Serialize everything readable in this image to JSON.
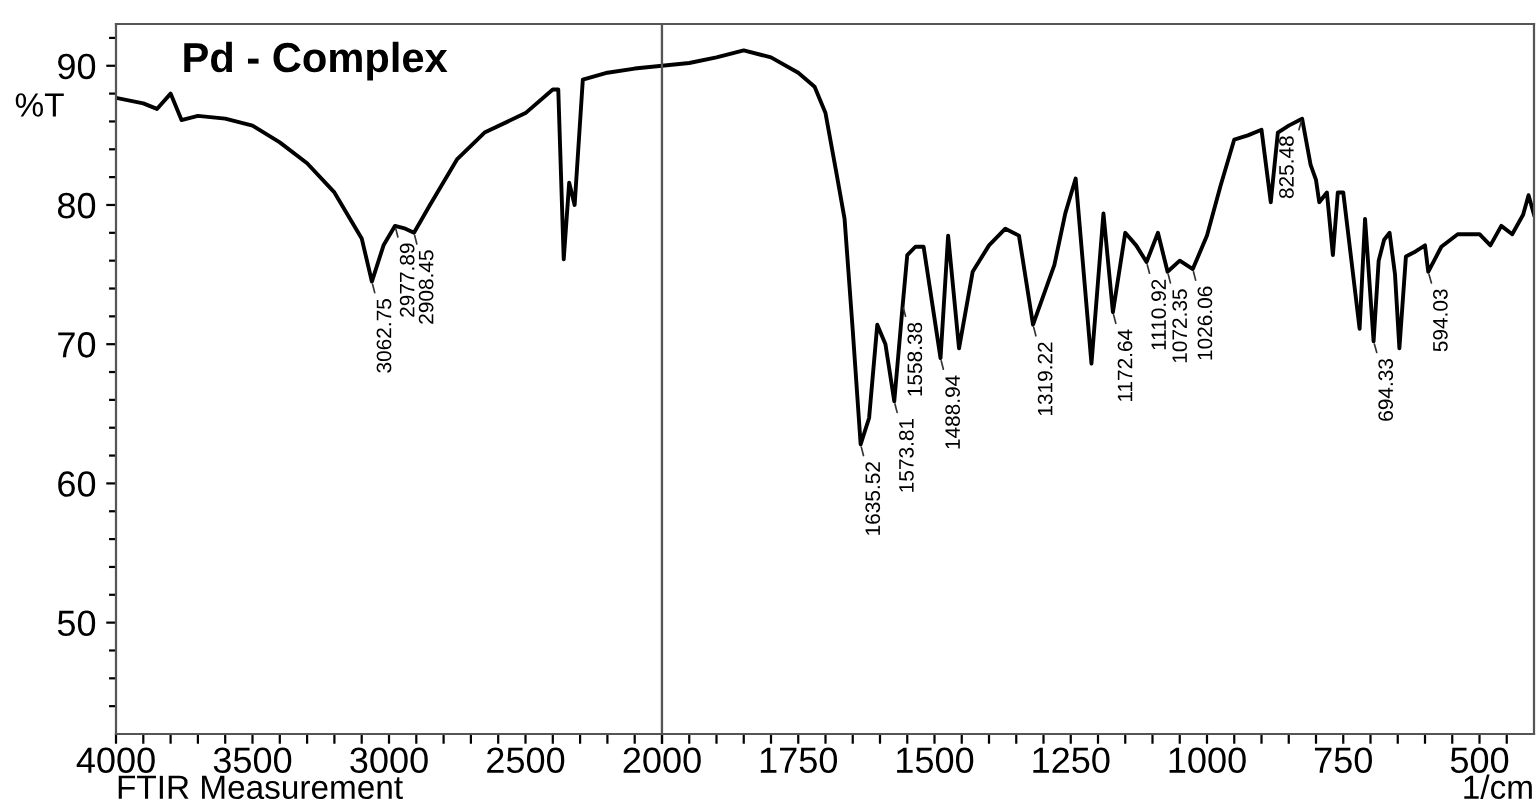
{
  "chart_data": [
    {
      "type": "line",
      "title": "Pd - Complex",
      "ylabel": "%T",
      "xlabel": "FTIR Measurement",
      "xlim": [
        4000,
        2000
      ],
      "ylim": [
        42,
        93
      ],
      "xticks": [
        4000,
        {
          "value": 3900,
          "label": null
        },
        {
          "value": 3800,
          "label": null
        },
        {
          "value": 3700,
          "label": null
        },
        {
          "value": 3600,
          "label": null
        },
        3500,
        {
          "value": 3400,
          "label": null
        },
        {
          "value": 3300,
          "label": null
        },
        {
          "value": 3200,
          "label": null
        },
        {
          "value": 3100,
          "label": null
        },
        3000,
        {
          "value": 2900,
          "label": null
        },
        {
          "value": 2800,
          "label": null
        },
        {
          "value": 2700,
          "label": null
        },
        {
          "value": 2600,
          "label": null
        },
        2500,
        {
          "value": 2400,
          "label": null
        },
        {
          "value": 2300,
          "label": null
        },
        {
          "value": 2200,
          "label": null
        },
        {
          "value": 2100,
          "label": null
        },
        2000
      ],
      "yticks": [
        {
          "value": 44,
          "label": null
        },
        {
          "value": 46,
          "label": null
        },
        {
          "value": 48,
          "label": null
        },
        50,
        {
          "value": 52,
          "label": null
        },
        {
          "value": 54,
          "label": null
        },
        {
          "value": 56,
          "label": null
        },
        {
          "value": 58,
          "label": null
        },
        60,
        {
          "value": 62,
          "label": null
        },
        {
          "value": 64,
          "label": null
        },
        {
          "value": 66,
          "label": null
        },
        {
          "value": 68,
          "label": null
        },
        70,
        {
          "value": 72,
          "label": null
        },
        {
          "value": 74,
          "label": null
        },
        {
          "value": 76,
          "label": null
        },
        {
          "value": 78,
          "label": null
        },
        80,
        {
          "value": 82,
          "label": null
        },
        {
          "value": 84,
          "label": null
        },
        {
          "value": 86,
          "label": null
        },
        {
          "value": 88,
          "label": null
        },
        90,
        {
          "value": 92,
          "label": null
        }
      ],
      "grid": false,
      "legend": false,
      "marker": "none",
      "line_style": "solid",
      "series": [
        {
          "color": "#000000",
          "x": [
            4000,
            3900,
            3850,
            3800,
            3760,
            3700,
            3600,
            3500,
            3400,
            3300,
            3200,
            3100,
            3062.75,
            3020,
            2977.89,
            2940,
            2908.45,
            2850,
            2750,
            2650,
            2500,
            2400,
            2380,
            2360,
            2340,
            2320,
            2290,
            2200,
            2100,
            2000
          ],
          "values": [
            87.7,
            87.3,
            86.9,
            88.0,
            86.1,
            86.4,
            86.2,
            85.7,
            84.5,
            83.0,
            80.9,
            77.6,
            74.5,
            77.1,
            78.5,
            78.3,
            78.0,
            80.0,
            83.3,
            85.2,
            86.6,
            88.3,
            88.3,
            76.1,
            81.6,
            80.0,
            89.0,
            89.5,
            89.8,
            90.0
          ]
        }
      ],
      "annotations": [
        {
          "text": "3062.75",
          "x": 3062.75,
          "y": 74.5
        },
        {
          "text": "2977.89",
          "x": 2977.89,
          "y": 78.5
        },
        {
          "text": "2908.45",
          "x": 2908.45,
          "y": 78.0
        }
      ]
    },
    {
      "type": "line",
      "xlabel": "1/cm",
      "xlim": [
        2000,
        400
      ],
      "ylim": [
        42,
        93
      ],
      "tick_labels": "x",
      "xticks": [
        {
          "value": 2000,
          "label": null
        },
        {
          "value": 1950,
          "label": null
        },
        {
          "value": 1900,
          "label": null
        },
        {
          "value": 1850,
          "label": null
        },
        {
          "value": 1800,
          "label": null
        },
        1750,
        {
          "value": 1700,
          "label": null
        },
        {
          "value": 1650,
          "label": null
        },
        {
          "value": 1600,
          "label": null
        },
        {
          "value": 1550,
          "label": null
        },
        1500,
        {
          "value": 1450,
          "label": null
        },
        {
          "value": 1400,
          "label": null
        },
        {
          "value": 1350,
          "label": null
        },
        {
          "value": 1300,
          "label": null
        },
        1250,
        {
          "value": 1200,
          "label": null
        },
        {
          "value": 1150,
          "label": null
        },
        {
          "value": 1100,
          "label": null
        },
        {
          "value": 1050,
          "label": null
        },
        1000,
        {
          "value": 950,
          "label": null
        },
        {
          "value": 900,
          "label": null
        },
        {
          "value": 850,
          "label": null
        },
        {
          "value": 800,
          "label": null
        },
        750,
        {
          "value": 700,
          "label": null
        },
        {
          "value": 650,
          "label": null
        },
        {
          "value": 600,
          "label": null
        },
        {
          "value": 550,
          "label": null
        },
        500,
        {
          "value": 450,
          "label": null
        }
      ],
      "grid": false,
      "legend": false,
      "marker": "none",
      "line_style": "solid",
      "series": [
        {
          "color": "#000000",
          "x": [
            2000,
            1950,
            1900,
            1850,
            1800,
            1750,
            1720,
            1700,
            1680,
            1665,
            1650,
            1635.52,
            1620,
            1605,
            1590,
            1573.81,
            1558.38,
            1550,
            1535,
            1520,
            1488.94,
            1475,
            1455,
            1430,
            1400,
            1370,
            1345,
            1319.22,
            1280,
            1260,
            1241,
            1212,
            1190,
            1172.64,
            1150,
            1130,
            1110.92,
            1090,
            1072.35,
            1050,
            1026.06,
            1000,
            975,
            950,
            925,
            900,
            883,
            870,
            850,
            825.48,
            810,
            800,
            794,
            780,
            769,
            760,
            750,
            720,
            710,
            694.33,
            685,
            675,
            665,
            655,
            647,
            635,
            620,
            600,
            594.03,
            570,
            540,
            500,
            480,
            460,
            440,
            420,
            410,
            400
          ],
          "values": [
            90.0,
            90.2,
            90.6,
            91.1,
            90.6,
            89.5,
            88.5,
            86.6,
            82.3,
            79.0,
            71.0,
            62.8,
            64.7,
            71.4,
            70.0,
            65.9,
            72.8,
            76.4,
            77.0,
            77.0,
            69.0,
            77.8,
            69.7,
            75.2,
            77.1,
            78.3,
            77.8,
            71.4,
            75.7,
            79.4,
            81.9,
            68.6,
            79.4,
            72.3,
            78.0,
            77.1,
            75.9,
            78.0,
            75.2,
            76.0,
            75.4,
            77.8,
            81.4,
            84.7,
            85.0,
            85.4,
            80.2,
            85.2,
            85.7,
            86.2,
            82.9,
            81.8,
            80.2,
            80.9,
            76.4,
            80.9,
            80.9,
            71.1,
            79.0,
            70.2,
            76.0,
            77.5,
            78.0,
            75.0,
            69.7,
            76.3,
            76.6,
            77.1,
            75.2,
            77.0,
            77.9,
            77.9,
            77.1,
            78.5,
            77.9,
            79.3,
            80.7,
            79.3
          ]
        }
      ],
      "annotations": [
        {
          "text": "1635.52",
          "x": 1635.52,
          "y": 62.8
        },
        {
          "text": "1573.81",
          "x": 1573.81,
          "y": 65.9
        },
        {
          "text": "1558.38",
          "x": 1558.38,
          "y": 72.8
        },
        {
          "text": "1488.94",
          "x": 1488.94,
          "y": 69.0
        },
        {
          "text": "1319.22",
          "x": 1319.22,
          "y": 71.4
        },
        {
          "text": "1172.64",
          "x": 1172.64,
          "y": 72.3
        },
        {
          "text": "1110.92",
          "x": 1110.92,
          "y": 75.9
        },
        {
          "text": "1072.35",
          "x": 1072.35,
          "y": 75.2
        },
        {
          "text": "1026.06",
          "x": 1026.06,
          "y": 75.4
        },
        {
          "text": "825.48",
          "x": 825.48,
          "y": 86.2
        },
        {
          "text": "694.33",
          "x": 694.33,
          "y": 70.2
        },
        {
          "text": "594.03",
          "x": 594.03,
          "y": 75.2
        }
      ]
    }
  ]
}
